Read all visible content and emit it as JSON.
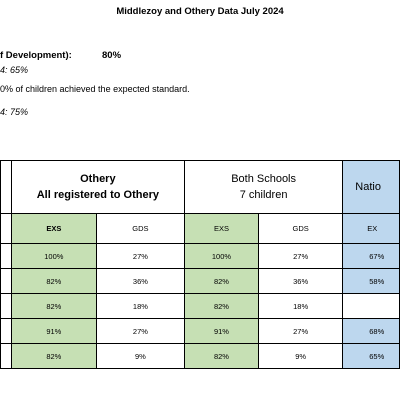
{
  "document": {
    "title": "Middlezoy and Othery Data July 2024",
    "line1_label": "f Development):",
    "line1_value": "80%",
    "line2": "4: 65%",
    "line3": "0% of children achieved the expected standard.",
    "line4": "4: 75%"
  },
  "table": {
    "headers": {
      "othery_title": "Othery",
      "othery_sub": "All registered to Othery",
      "both_title": "Both Schools",
      "both_sub": "7 children",
      "national_title": "Natio"
    },
    "subheaders": [
      "EXS",
      "GDS",
      "EXS",
      "GDS",
      "EX"
    ],
    "rows": [
      [
        "100%",
        "27%",
        "100%",
        "27%",
        "67%"
      ],
      [
        "82%",
        "36%",
        "82%",
        "36%",
        "58%"
      ],
      [
        "82%",
        "18%",
        "82%",
        "18%",
        ""
      ],
      [
        "91%",
        "27%",
        "91%",
        "27%",
        "68%"
      ],
      [
        "82%",
        "9%",
        "82%",
        "9%",
        "65%"
      ]
    ]
  }
}
